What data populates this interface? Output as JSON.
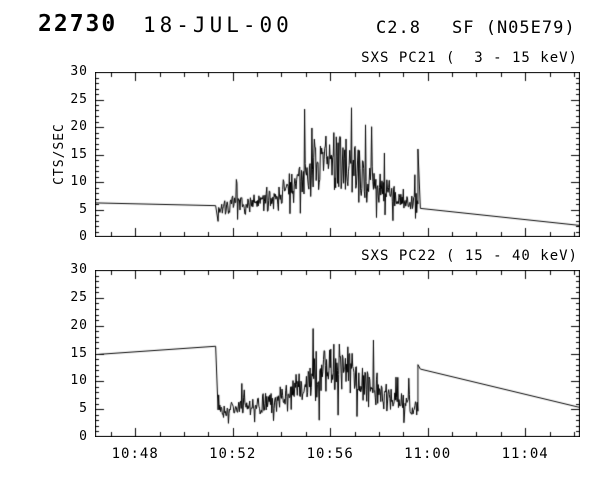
{
  "header": {
    "event_id": "22730",
    "date": "18-JUL-00",
    "goes_class": "C2.8",
    "flare_type_location": "SF (N05E79)"
  },
  "chart_data": [
    {
      "type": "line",
      "instrument": "SXS PC21",
      "title": "SXS PC21 (  3 - 15 keV)",
      "ylabel": "CTS/SEC",
      "ylim": [
        0,
        30
      ],
      "yticks": [
        0,
        5,
        10,
        15,
        20,
        25,
        30
      ],
      "y_minor_step": 1,
      "x_range_minutes": [
        646.35,
        666.25
      ],
      "x_minor_step": 1,
      "xticks": [
        {
          "t": 648,
          "label": "10:48"
        },
        {
          "t": 652,
          "label": "10:52"
        },
        {
          "t": 656,
          "label": "10:56"
        },
        {
          "t": 660,
          "label": "11:00"
        },
        {
          "t": 664,
          "label": "11:04"
        }
      ],
      "pre_line": [
        [
          646.35,
          6.2
        ],
        [
          651.3,
          5.7
        ]
      ],
      "burst": {
        "t_start": 651.4,
        "t_end": 659.6,
        "dt_sec": 1.5,
        "seed": 7,
        "envelope": [
          [
            651.4,
            5.5
          ],
          [
            653,
            6
          ],
          [
            654,
            8
          ],
          [
            655,
            11
          ],
          [
            655.7,
            13.5
          ],
          [
            656.2,
            14
          ],
          [
            656.8,
            12.5
          ],
          [
            657.5,
            10.5
          ],
          [
            658.3,
            8
          ],
          [
            659,
            6.5
          ],
          [
            659.6,
            6
          ]
        ],
        "noise_base": 1.8,
        "noise_gain": 0.6,
        "spike_prob": 0.03,
        "max": 23.5,
        "end_spike": 16
      },
      "post_line": [
        [
          659.7,
          5.2
        ],
        [
          666.25,
          2.1
        ]
      ]
    },
    {
      "type": "line",
      "instrument": "SXS PC22",
      "title": "SXS PC22 ( 15 - 40 keV)",
      "ylabel": "",
      "ylim": [
        0,
        30
      ],
      "yticks": [
        0,
        5,
        10,
        15,
        20,
        25,
        30
      ],
      "y_minor_step": 1,
      "x_range_minutes": [
        646.35,
        666.25
      ],
      "x_minor_step": 1,
      "xticks": [
        {
          "t": 648,
          "label": "10:48"
        },
        {
          "t": 652,
          "label": "10:52"
        },
        {
          "t": 656,
          "label": "10:56"
        },
        {
          "t": 660,
          "label": "11:00"
        },
        {
          "t": 664,
          "label": "11:04"
        }
      ],
      "pre_line": [
        [
          646.35,
          14.8
        ],
        [
          651.3,
          16.3
        ]
      ],
      "burst": {
        "t_start": 651.4,
        "t_end": 659.6,
        "dt_sec": 1.5,
        "seed": 13,
        "envelope": [
          [
            651.4,
            5
          ],
          [
            653,
            5.5
          ],
          [
            654,
            7
          ],
          [
            655,
            9.5
          ],
          [
            655.8,
            12
          ],
          [
            656.3,
            12.5
          ],
          [
            656.9,
            11
          ],
          [
            657.6,
            9
          ],
          [
            658.4,
            7
          ],
          [
            659,
            6
          ],
          [
            659.6,
            5.5
          ]
        ],
        "noise_base": 1.7,
        "noise_gain": 0.6,
        "spike_prob": 0.03,
        "max": 22,
        "end_spike": 13
      },
      "post_line": [
        [
          659.7,
          12.2
        ],
        [
          666.25,
          5.3
        ]
      ]
    }
  ]
}
